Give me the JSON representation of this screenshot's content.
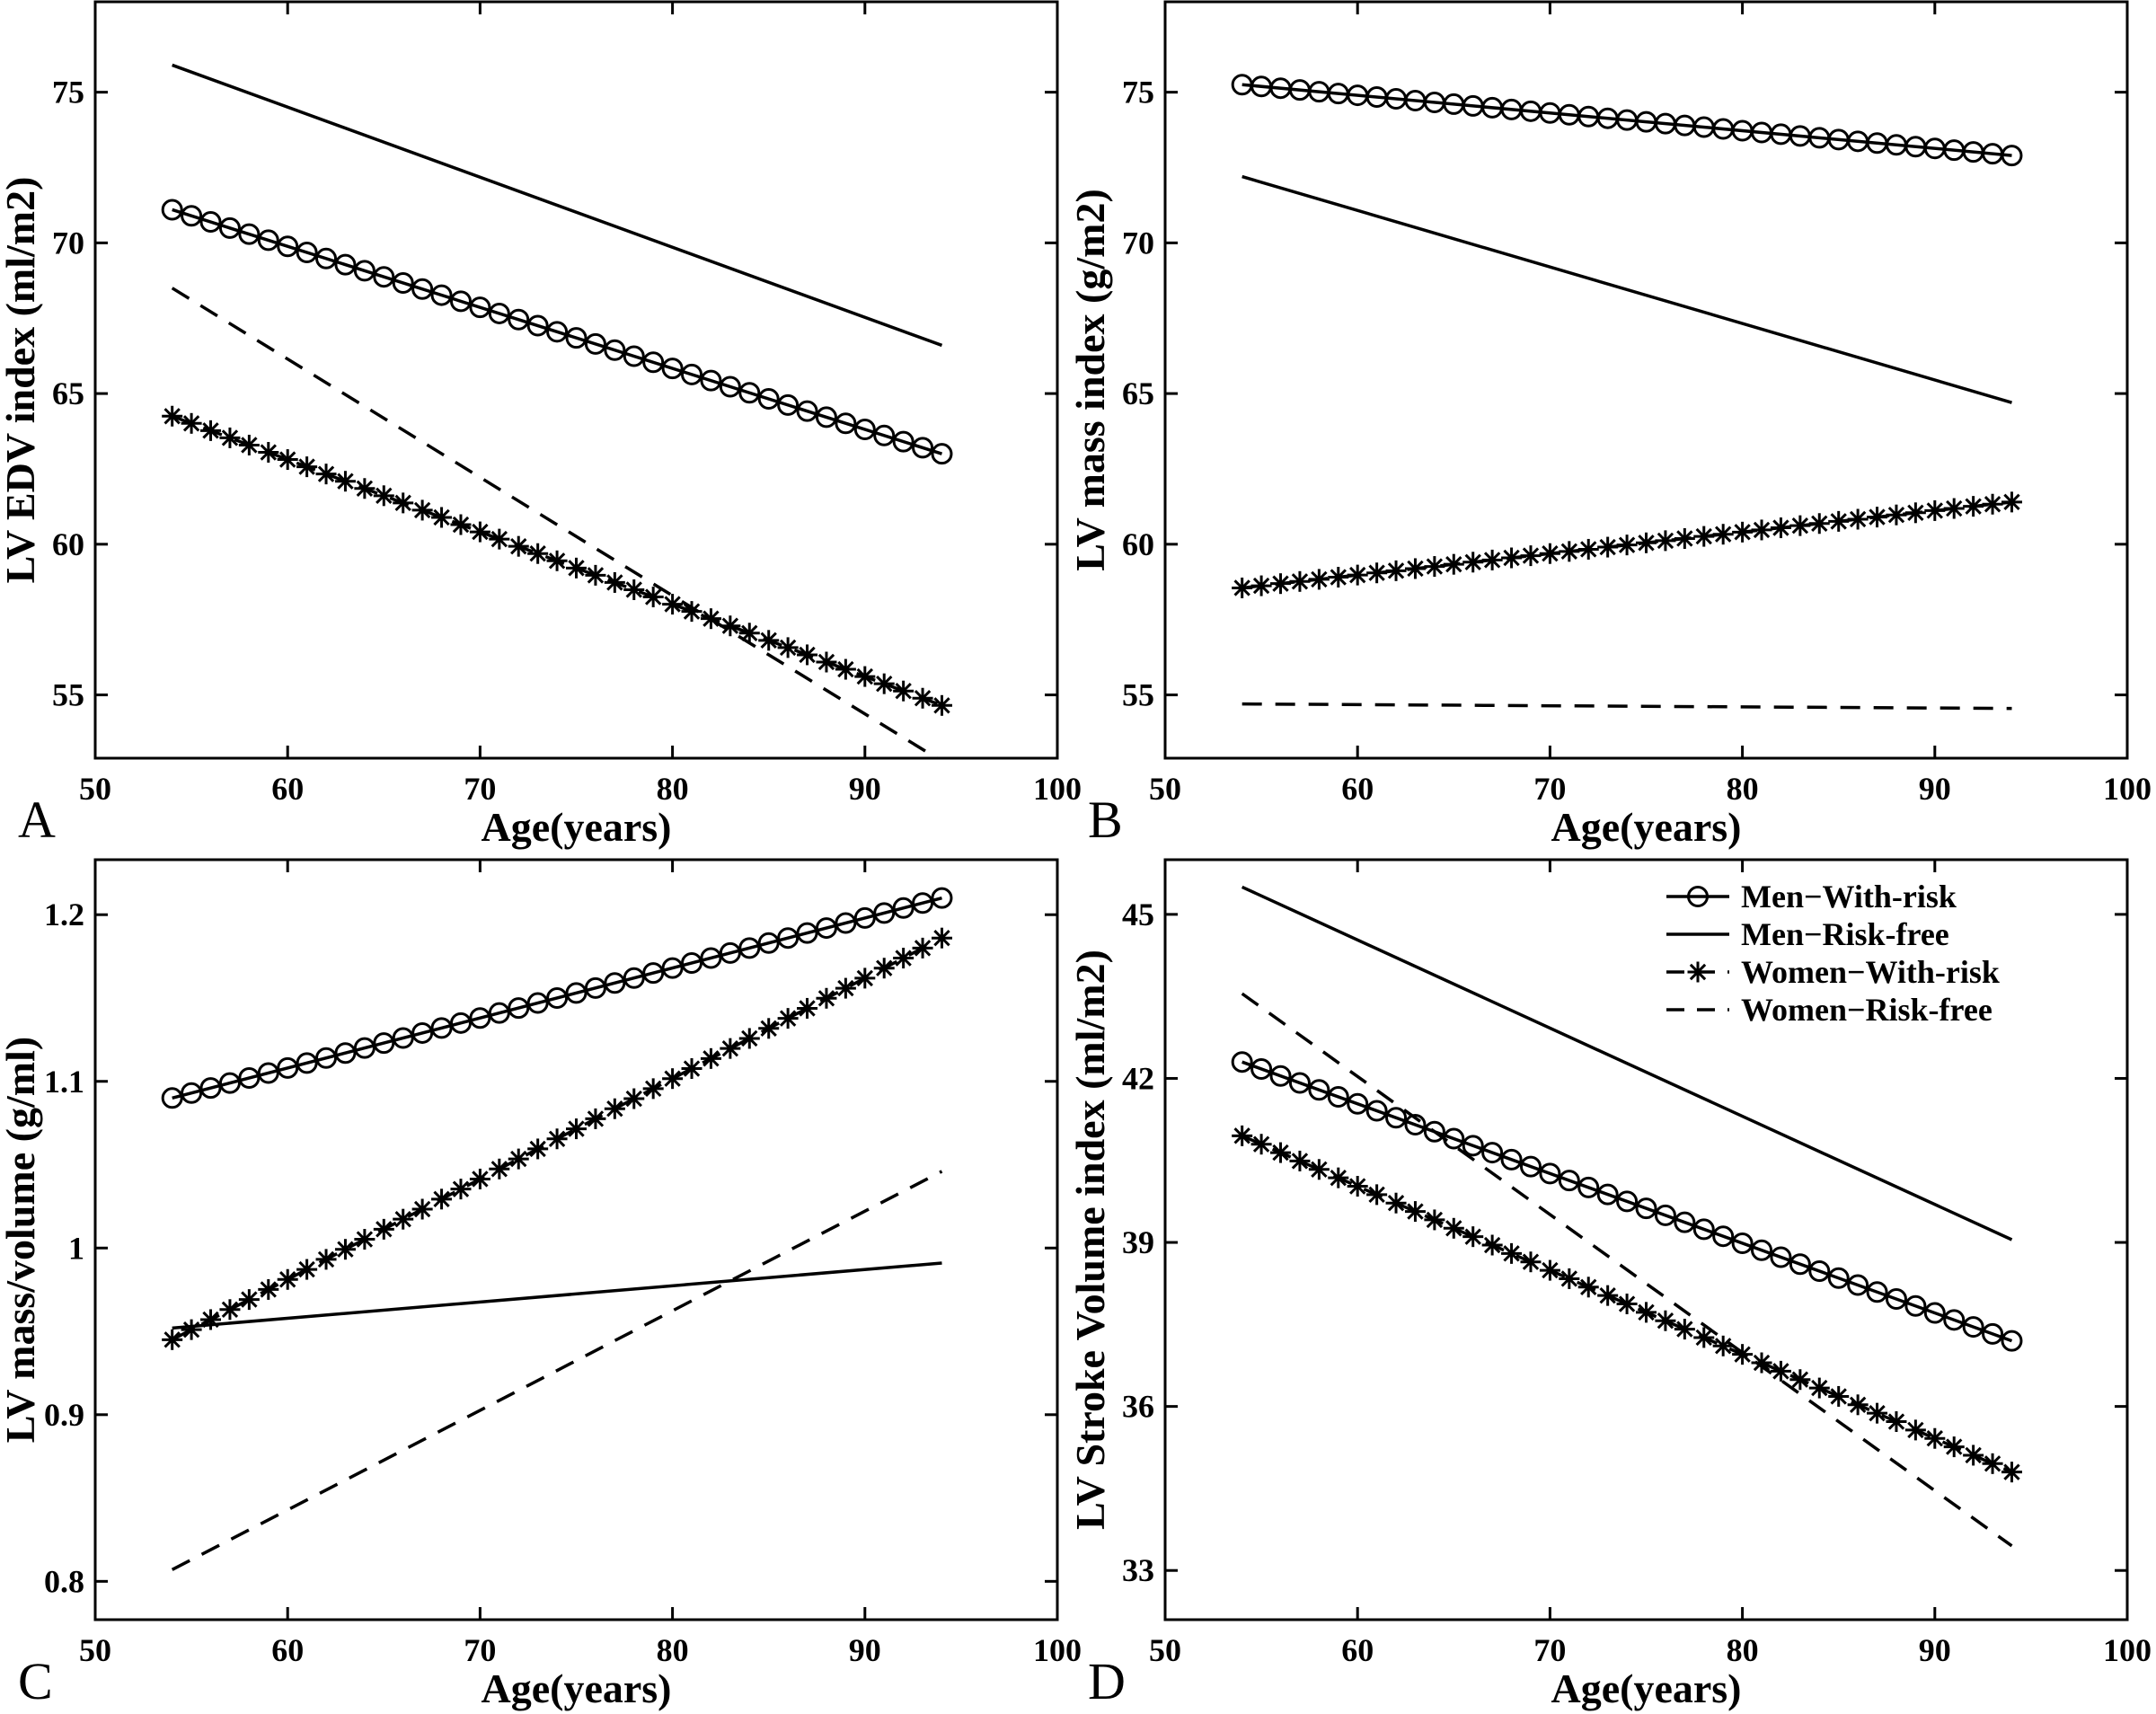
{
  "figure": {
    "description": "Four-panel line chart figure of left-ventricular measures versus age",
    "colors": {
      "foreground": "#000000",
      "background": "#ffffff"
    }
  },
  "chart_data": [
    {
      "type": "line",
      "panel_letter": "A",
      "xlabel": "Age(years)",
      "ylabel": "LV EDV index (ml/m2)",
      "xlim": [
        50,
        100
      ],
      "xticks": [
        50,
        60,
        70,
        80,
        90,
        100
      ],
      "ylim": [
        52.9,
        78.0
      ],
      "yticks": [
        55,
        60,
        65,
        70,
        75
      ],
      "x_data_range": [
        54,
        94
      ],
      "grid": false,
      "series": [
        {
          "name": "Men−With-risk",
          "line": "solid",
          "marker": "circle",
          "x": [
            54,
            94
          ],
          "y": [
            71.1,
            63.0
          ]
        },
        {
          "name": "Men−Risk-free",
          "line": "solid",
          "marker": "none",
          "x": [
            54,
            94
          ],
          "y": [
            75.9,
            66.6
          ]
        },
        {
          "name": "Women−With-risk",
          "line": "dashed",
          "marker": "asterisk",
          "x": [
            54,
            94
          ],
          "y": [
            64.25,
            54.65
          ]
        },
        {
          "name": "Women−Risk-free",
          "line": "dashed",
          "marker": "none",
          "x": [
            54,
            94
          ],
          "y": [
            68.5,
            52.8
          ]
        }
      ]
    },
    {
      "type": "line",
      "panel_letter": "B",
      "xlabel": "Age(years)",
      "ylabel": "LV mass index (g/m2)",
      "xlim": [
        50,
        100
      ],
      "xticks": [
        50,
        60,
        70,
        80,
        90,
        100
      ],
      "ylim": [
        52.9,
        78.0
      ],
      "yticks": [
        55,
        60,
        65,
        70,
        75
      ],
      "x_data_range": [
        54,
        94
      ],
      "grid": false,
      "series": [
        {
          "name": "Men−With-risk",
          "line": "solid",
          "marker": "circle",
          "x": [
            54,
            94
          ],
          "y": [
            75.25,
            72.9
          ]
        },
        {
          "name": "Men−Risk-free",
          "line": "solid",
          "marker": "none",
          "x": [
            54,
            94
          ],
          "y": [
            72.2,
            64.7
          ]
        },
        {
          "name": "Women−With-risk",
          "line": "dashed",
          "marker": "asterisk",
          "x": [
            54,
            94
          ],
          "y": [
            58.55,
            61.4
          ]
        },
        {
          "name": "Women−Risk-free",
          "line": "dashed",
          "marker": "none",
          "x": [
            54,
            94
          ],
          "y": [
            54.7,
            54.55
          ]
        }
      ]
    },
    {
      "type": "line",
      "panel_letter": "C",
      "xlabel": "Age(years)",
      "ylabel": "LV mass/volume (g/ml)",
      "xlim": [
        50,
        100
      ],
      "xticks": [
        50,
        60,
        70,
        80,
        90,
        100
      ],
      "ylim": [
        0.777,
        1.233
      ],
      "yticks": [
        0.8,
        0.9,
        1,
        1.1,
        1.2
      ],
      "x_data_range": [
        54,
        94
      ],
      "grid": false,
      "series": [
        {
          "name": "Men−With-risk",
          "line": "solid",
          "marker": "circle",
          "x": [
            54,
            94
          ],
          "y": [
            1.09,
            1.21
          ]
        },
        {
          "name": "Men−Risk-free",
          "line": "solid",
          "marker": "none",
          "x": [
            54,
            94
          ],
          "y": [
            0.952,
            0.991
          ]
        },
        {
          "name": "Women−With-risk",
          "line": "dashed",
          "marker": "asterisk",
          "x": [
            54,
            94
          ],
          "y": [
            0.945,
            1.186
          ]
        },
        {
          "name": "Women−Risk-free",
          "line": "dashed",
          "marker": "none",
          "x": [
            54,
            94
          ],
          "y": [
            0.807,
            1.046
          ]
        }
      ]
    },
    {
      "type": "line",
      "panel_letter": "D",
      "xlabel": "Age(years)",
      "ylabel": "LV Stroke Volume index (ml/m2)",
      "xlim": [
        50,
        100
      ],
      "xticks": [
        50,
        60,
        70,
        80,
        90,
        100
      ],
      "ylim": [
        32.1,
        46.0
      ],
      "yticks": [
        33,
        36,
        39,
        42,
        45
      ],
      "x_data_range": [
        54,
        94
      ],
      "grid": false,
      "series": [
        {
          "name": "Men−With-risk",
          "line": "solid",
          "marker": "circle",
          "x": [
            54,
            94
          ],
          "y": [
            42.3,
            37.2
          ]
        },
        {
          "name": "Men−Risk-free",
          "line": "solid",
          "marker": "none",
          "x": [
            54,
            94
          ],
          "y": [
            45.5,
            39.05
          ]
        },
        {
          "name": "Women−With-risk",
          "line": "dashed",
          "marker": "asterisk",
          "x": [
            54,
            94
          ],
          "y": [
            40.95,
            34.8
          ]
        },
        {
          "name": "Women−Risk-free",
          "line": "dashed",
          "marker": "none",
          "x": [
            54,
            94
          ],
          "y": [
            43.55,
            33.45
          ]
        }
      ]
    }
  ],
  "legend": {
    "location": "top-right of panel D",
    "entries": [
      {
        "label": "Men−With-risk",
        "line": "solid",
        "marker": "circle"
      },
      {
        "label": "Men−Risk-free",
        "line": "solid",
        "marker": "none"
      },
      {
        "label": "Women−With-risk",
        "line": "dashed",
        "marker": "asterisk"
      },
      {
        "label": "Women−Risk-free",
        "line": "dashed",
        "marker": "none"
      }
    ]
  }
}
